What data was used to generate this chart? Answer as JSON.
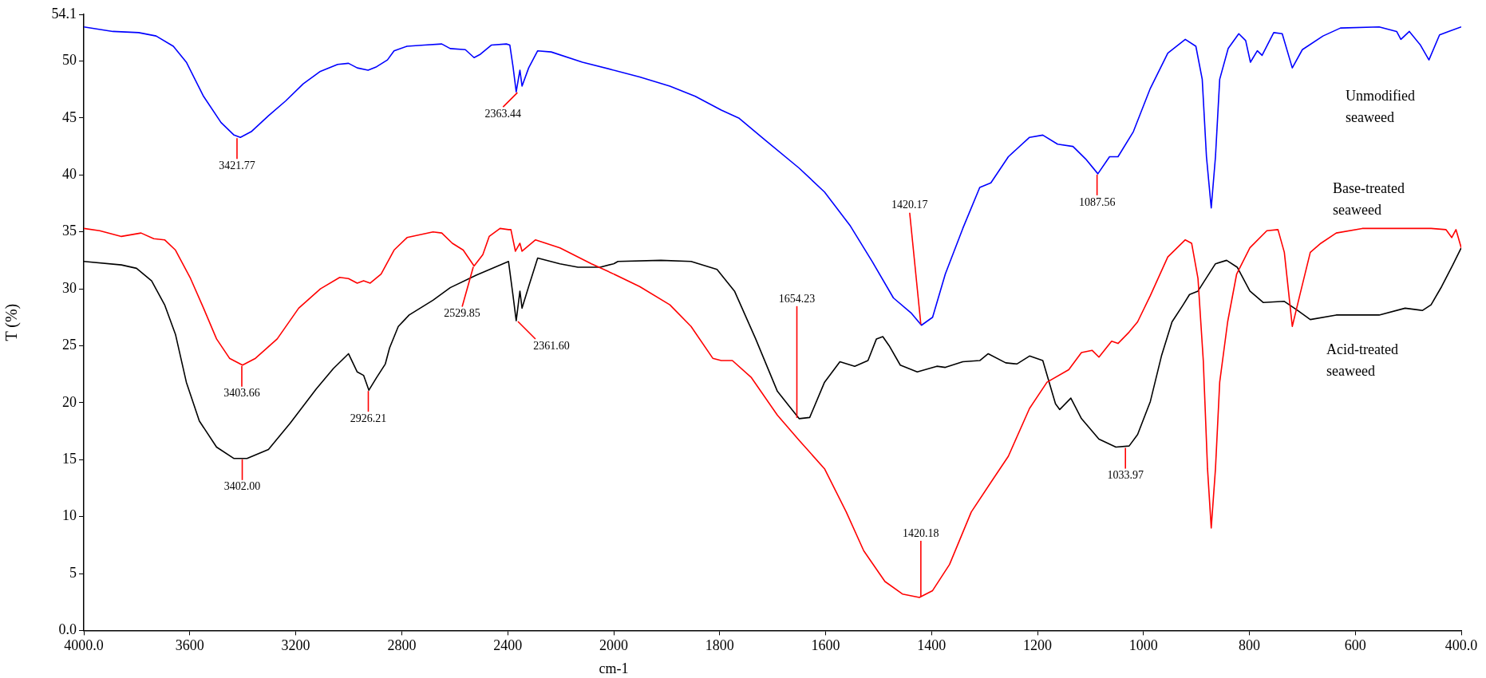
{
  "chart_data": [
    {
      "type": "line",
      "xlabel": "cm-1",
      "ylabel": "T (%)",
      "xlim": [
        4000,
        2000
      ],
      "xticks": [
        {
          "value": 4000,
          "label": "4000.0"
        },
        3600,
        3200,
        2800,
        2400,
        2000
      ],
      "ylim": [
        0,
        54.1
      ],
      "yticks": [
        {
          "value": 0,
          "label": "0.0"
        },
        5,
        10,
        15,
        20,
        25,
        30,
        35,
        40,
        45,
        50,
        {
          "value": 54.1,
          "label": "54.1"
        }
      ],
      "grid": false,
      "legend": false,
      "marker": "none",
      "line_style": "solid",
      "series": [
        {
          "color": "#0000ff",
          "x": [
            4000,
            3890,
            3793,
            3727,
            3662,
            3613,
            3548,
            3482,
            3433,
            3409,
            3368,
            3303,
            3238,
            3172,
            3107,
            3042,
            3001,
            2968,
            2927,
            2895,
            2854,
            2829,
            2780,
            2715,
            2649,
            2617,
            2560,
            2527,
            2503,
            2462,
            2405,
            2392,
            2380,
            2368,
            2354,
            2346,
            2321,
            2287,
            2236,
            2118,
            2000
          ],
          "values": [
            53.0,
            52.6,
            52.5,
            52.2,
            51.3,
            49.9,
            46.9,
            44.6,
            43.5,
            43.3,
            43.8,
            45.2,
            46.5,
            48.0,
            49.1,
            49.7,
            49.8,
            49.4,
            49.2,
            49.5,
            50.1,
            50.9,
            51.3,
            51.4,
            51.5,
            51.1,
            51.0,
            50.3,
            50.6,
            51.4,
            51.5,
            51.4,
            49.5,
            47.3,
            49.2,
            47.8,
            49.4,
            50.9,
            50.8,
            49.9,
            49.2
          ]
        },
        {
          "color": "#ff0000",
          "x": [
            4000,
            3940,
            3858,
            3784,
            3736,
            3695,
            3654,
            3597,
            3548,
            3499,
            3450,
            3401,
            3352,
            3270,
            3189,
            3107,
            3034,
            3001,
            2968,
            2944,
            2919,
            2878,
            2829,
            2780,
            2682,
            2649,
            2609,
            2568,
            2527,
            2494,
            2470,
            2429,
            2397,
            2388,
            2371,
            2354,
            2346,
            2295,
            2203,
            2084,
            2000
          ],
          "values": [
            35.3,
            35.1,
            34.6,
            34.9,
            34.4,
            34.3,
            33.4,
            30.9,
            28.3,
            25.6,
            23.9,
            23.3,
            23.9,
            25.6,
            28.3,
            30.0,
            31.0,
            30.9,
            30.5,
            30.7,
            30.5,
            31.3,
            33.4,
            34.5,
            35.0,
            34.9,
            34.0,
            33.4,
            32.0,
            33.0,
            34.6,
            35.3,
            35.2,
            35.2,
            33.3,
            34.0,
            33.3,
            34.3,
            33.6,
            32.2,
            31.3
          ]
        },
        {
          "color": "#000000",
          "x": [
            4000,
            3858,
            3801,
            3744,
            3695,
            3654,
            3613,
            3564,
            3499,
            3433,
            3384,
            3303,
            3221,
            3123,
            3058,
            3001,
            2968,
            2944,
            2924,
            2895,
            2862,
            2846,
            2813,
            2772,
            2682,
            2617,
            2519,
            2397,
            2380,
            2368,
            2354,
            2346,
            2321,
            2287,
            2203,
            2135,
            2051,
            2000
          ],
          "values": [
            32.4,
            32.1,
            31.8,
            30.7,
            28.6,
            26.0,
            21.8,
            18.4,
            16.1,
            15.1,
            15.1,
            15.9,
            18.2,
            21.2,
            23.0,
            24.3,
            22.7,
            22.4,
            21.1,
            22.2,
            23.4,
            24.8,
            26.7,
            27.7,
            29.0,
            30.1,
            31.2,
            32.4,
            29.4,
            27.2,
            29.8,
            28.3,
            30.2,
            32.7,
            32.2,
            31.9,
            31.9,
            32.2
          ]
        }
      ],
      "annotations": [
        {
          "text": "3421.77",
          "x": 3421.77,
          "y": 43.3
        },
        {
          "text": "2363.44",
          "x": 2363.44,
          "y": 47.3
        },
        {
          "text": "3403.66",
          "x": 3403.66,
          "y": 23.3
        },
        {
          "text": "2529.85",
          "x": 2529.85,
          "y": 32.0
        },
        {
          "text": "2926.21",
          "x": 2926.21,
          "y": 21.1
        },
        {
          "text": "3402.00",
          "x": 3402.0,
          "y": 15.1
        },
        {
          "text": "2361.60",
          "x": 2361.6,
          "y": 27.2
        }
      ]
    },
    {
      "type": "line",
      "xlim": [
        2000,
        400
      ],
      "xticks": [
        1800,
        1600,
        1400,
        1200,
        1000,
        800,
        600,
        {
          "value": 400,
          "label": "400.0"
        }
      ],
      "ylim": [
        0,
        54.1
      ],
      "tick_labels": "x",
      "grid": false,
      "legend": false,
      "marker": "none",
      "line_style": "solid",
      "series": [
        {
          "name": "Unmodified seaweed",
          "color": "#0000ff",
          "x": [
            2000,
            1951,
            1894,
            1846,
            1797,
            1764,
            1715,
            1650,
            1602,
            1553,
            1512,
            1472,
            1439,
            1419,
            1398,
            1374,
            1341,
            1309,
            1288,
            1255,
            1215,
            1190,
            1162,
            1133,
            1109,
            1086,
            1064,
            1048,
            1019,
            987,
            954,
            921,
            901,
            889,
            881,
            872,
            864,
            856,
            840,
            820,
            807,
            798,
            785,
            776,
            754,
            738,
            719,
            700,
            661,
            628,
            555,
            522,
            514,
            498,
            477,
            461,
            441,
            424,
            400
          ],
          "values": [
            49.2,
            48.6,
            47.8,
            46.9,
            45.7,
            45.0,
            43.1,
            40.6,
            38.5,
            35.5,
            32.4,
            29.2,
            27.9,
            26.8,
            27.5,
            31.3,
            35.3,
            38.9,
            39.3,
            41.6,
            43.3,
            43.5,
            42.7,
            42.5,
            41.4,
            40.1,
            41.6,
            41.6,
            43.8,
            47.6,
            50.7,
            51.9,
            51.3,
            48.4,
            41.6,
            37.1,
            41.6,
            48.4,
            51.1,
            52.4,
            51.8,
            49.9,
            50.9,
            50.5,
            52.5,
            52.4,
            49.4,
            51.0,
            52.2,
            52.9,
            53.0,
            52.6,
            51.9,
            52.6,
            51.4,
            50.1,
            52.3,
            52.6,
            53.0
          ]
        },
        {
          "name": "Base-treated seaweed",
          "color": "#ff0000",
          "x": [
            2000,
            1951,
            1894,
            1854,
            1813,
            1797,
            1776,
            1740,
            1691,
            1650,
            1602,
            1561,
            1528,
            1488,
            1455,
            1423,
            1398,
            1366,
            1325,
            1288,
            1255,
            1215,
            1182,
            1141,
            1117,
            1097,
            1084,
            1060,
            1048,
            1027,
            1011,
            987,
            954,
            921,
            909,
            897,
            887,
            879,
            872,
            864,
            856,
            841,
            824,
            799,
            767,
            746,
            734,
            719,
            705,
            685,
            665,
            636,
            587,
            457,
            429,
            418,
            410,
            400
          ],
          "values": [
            31.3,
            30.2,
            28.6,
            26.7,
            23.9,
            23.7,
            23.7,
            22.2,
            18.9,
            16.7,
            14.2,
            10.4,
            7.0,
            4.3,
            3.2,
            2.9,
            3.5,
            5.8,
            10.4,
            13.0,
            15.3,
            19.5,
            21.8,
            22.9,
            24.4,
            24.6,
            24.0,
            25.4,
            25.2,
            26.2,
            27.1,
            29.4,
            32.8,
            34.3,
            34.0,
            30.9,
            23.7,
            14.2,
            9.0,
            14.2,
            21.8,
            27.1,
            31.3,
            33.6,
            35.1,
            35.2,
            33.2,
            26.7,
            29.4,
            33.2,
            34.0,
            34.9,
            35.3,
            35.3,
            35.2,
            34.5,
            35.2,
            33.6
          ]
        },
        {
          "name": "Acid-treated seaweed",
          "color": "#000000",
          "x": [
            2000,
            1992,
            1911,
            1854,
            1805,
            1772,
            1732,
            1691,
            1650,
            1630,
            1602,
            1573,
            1545,
            1520,
            1504,
            1492,
            1480,
            1459,
            1427,
            1390,
            1374,
            1341,
            1309,
            1293,
            1260,
            1239,
            1215,
            1190,
            1166,
            1158,
            1137,
            1117,
            1084,
            1052,
            1027,
            1011,
            987,
            966,
            946,
            925,
            913,
            897,
            864,
            843,
            823,
            799,
            774,
            734,
            709,
            685,
            636,
            555,
            506,
            473,
            457,
            437,
            416,
            400
          ],
          "values": [
            32.2,
            32.4,
            32.5,
            32.4,
            31.7,
            29.8,
            25.6,
            21.0,
            18.6,
            18.7,
            21.8,
            23.6,
            23.2,
            23.7,
            25.6,
            25.8,
            25.0,
            23.3,
            22.7,
            23.2,
            23.1,
            23.6,
            23.7,
            24.3,
            23.5,
            23.4,
            24.1,
            23.7,
            19.9,
            19.4,
            20.4,
            18.6,
            16.8,
            16.1,
            16.2,
            17.2,
            20.1,
            24.1,
            27.1,
            28.6,
            29.5,
            29.8,
            32.2,
            32.5,
            31.9,
            29.8,
            28.8,
            28.9,
            28.1,
            27.3,
            27.7,
            27.7,
            28.3,
            28.1,
            28.6,
            30.2,
            32.1,
            33.6
          ]
        }
      ],
      "annotations": [
        {
          "text": "1420.17",
          "x": 1420.17,
          "y": 26.8
        },
        {
          "text": "1087.56",
          "x": 1087.56,
          "y": 40.1
        },
        {
          "text": "1654.23",
          "x": 1654.23,
          "y": 18.6
        },
        {
          "text": "1420.18",
          "x": 1420.18,
          "y": 2.9
        },
        {
          "text": "1033.97",
          "x": 1033.97,
          "y": 16.1
        }
      ]
    }
  ]
}
